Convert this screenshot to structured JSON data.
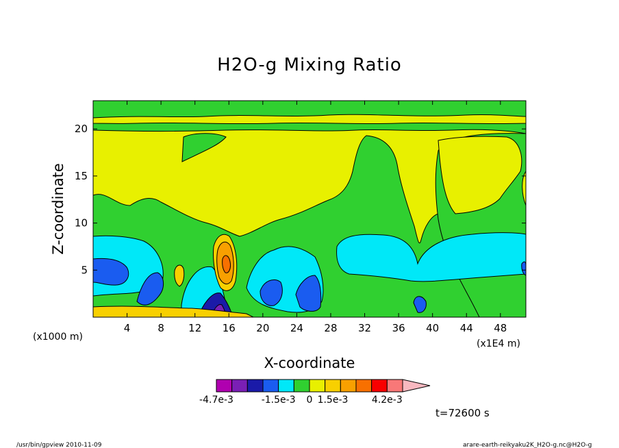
{
  "chart_data": {
    "type": "heatmap",
    "title": "H2O-g Mixing Ratio",
    "xlabel": "X-coordinate",
    "ylabel": "Z-coordinate",
    "x_unit_left": "(x1000 m)",
    "x_unit_right": "(x1E4 m)",
    "xlim": [
      0,
      51
    ],
    "ylim": [
      0,
      23
    ],
    "x_ticks": [
      4,
      8,
      12,
      16,
      20,
      24,
      28,
      32,
      36,
      40,
      44,
      48
    ],
    "y_ticks": [
      5,
      10,
      15,
      20
    ],
    "colorbar": {
      "colors": [
        "#b000b0",
        "#7a1fb5",
        "#1a1aa8",
        "#1a5cf0",
        "#00e8f8",
        "#30d030",
        "#e8f000",
        "#f8d000",
        "#f8a000",
        "#f87000",
        "#f80000",
        "#f87878",
        "#f8b8c0"
      ],
      "labels": [
        "-4.7e-3",
        "-1.5e-3",
        "0",
        "1.5e-3",
        "4.2e-3"
      ]
    },
    "time_label": "t=72600 s",
    "footer_left": "/usr/bin/gpview  2010-11-09",
    "footer_right": "arare-earth-reikyaku2K_H2O-g.nc@H2O-g"
  }
}
